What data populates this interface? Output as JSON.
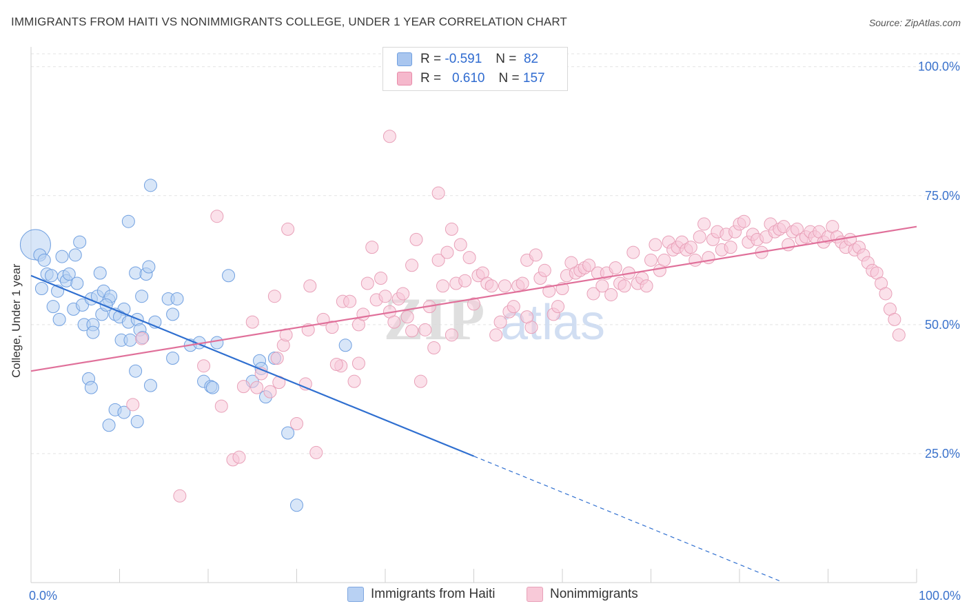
{
  "title": "IMMIGRANTS FROM HAITI VS NONIMMIGRANTS COLLEGE, UNDER 1 YEAR CORRELATION CHART",
  "source": "Source: ZipAtlas.com",
  "watermark": {
    "zip": "ZIP",
    "atlas": "atlas"
  },
  "legend": {
    "r_label": "R =",
    "n_label": "N =",
    "rows": [
      {
        "r": "-0.591",
        "n": "82",
        "color": "#a9c6ef",
        "stroke": "#6f9fe0"
      },
      {
        "r": "0.610",
        "n": "157",
        "color": "#f5b8cc",
        "stroke": "#e88aa8"
      }
    ]
  },
  "bottom_legend": {
    "items": [
      {
        "label": "Immigrants from Haiti",
        "color": "#b8d1f3",
        "stroke": "#7ea6e0"
      },
      {
        "label": "Nonimmigrants",
        "color": "#f8c9d8",
        "stroke": "#e8a0b8"
      }
    ]
  },
  "chart_data": {
    "type": "scatter",
    "title": "IMMIGRANTS FROM HAITI VS NONIMMIGRANTS COLLEGE, UNDER 1 YEAR CORRELATION CHART",
    "xlabel": "",
    "ylabel": "College, Under 1 year",
    "xlim": [
      0,
      100
    ],
    "ylim": [
      0,
      102.5
    ],
    "x_ticks": [
      "0.0%",
      "100.0%"
    ],
    "y_ticks": [
      {
        "v": 25,
        "label": "25.0%"
      },
      {
        "v": 50,
        "label": "50.0%"
      },
      {
        "v": 75,
        "label": "75.0%"
      },
      {
        "v": 100,
        "label": "100.0%"
      }
    ],
    "grid": true,
    "legend_position": "top-center",
    "series": [
      {
        "name": "Immigrants from Haiti",
        "fill": "#b8d1f3",
        "stroke": "#6f9fe0",
        "trend_color": "#2f6fd0",
        "trend": {
          "x0": 0,
          "y0": 59.5,
          "x1": 50,
          "y1": 24.5,
          "dash_to_x": 84.5
        },
        "points": [
          [
            0.5,
            65.5,
            1
          ],
          [
            1,
            63.5,
            0
          ],
          [
            1.5,
            62.5,
            0
          ],
          [
            1.8,
            59.8,
            0
          ],
          [
            2.3,
            59.5,
            0
          ],
          [
            1.2,
            57,
            0
          ],
          [
            3.5,
            63.2,
            0
          ],
          [
            5,
            63.5,
            0
          ],
          [
            5.5,
            66,
            0
          ],
          [
            2.5,
            53.5,
            0
          ],
          [
            3,
            56.5,
            0
          ],
          [
            3.7,
            59.3,
            0
          ],
          [
            4,
            58.5,
            0
          ],
          [
            4.3,
            59.8,
            0
          ],
          [
            3.2,
            51,
            0
          ],
          [
            4.8,
            53,
            0
          ],
          [
            5.2,
            58,
            0
          ],
          [
            6,
            50,
            0
          ],
          [
            7,
            50,
            0
          ],
          [
            5.8,
            53.8,
            0
          ],
          [
            6.8,
            55,
            0
          ],
          [
            7.5,
            55.5,
            0
          ],
          [
            7,
            48.5,
            0
          ],
          [
            8,
            52,
            0
          ],
          [
            8.2,
            56.5,
            0
          ],
          [
            8.8,
            54.8,
            0
          ],
          [
            9,
            55.5,
            0
          ],
          [
            8.5,
            53.8,
            0
          ],
          [
            7.8,
            60,
            0
          ],
          [
            10.5,
            53,
            0
          ],
          [
            9.5,
            52,
            0
          ],
          [
            10,
            51.5,
            0
          ],
          [
            11,
            50.5,
            0
          ],
          [
            10.2,
            47,
            0
          ],
          [
            11.2,
            47,
            0
          ],
          [
            12,
            51,
            0
          ],
          [
            12.3,
            49,
            0
          ],
          [
            12.6,
            47.5,
            0
          ],
          [
            14,
            50.5,
            0
          ],
          [
            15.5,
            55,
            0
          ],
          [
            16,
            52,
            0
          ],
          [
            16.5,
            55,
            0
          ],
          [
            11,
            70,
            0
          ],
          [
            11.8,
            60,
            0
          ],
          [
            13,
            59.8,
            0
          ],
          [
            13.3,
            61.2,
            0
          ],
          [
            12.5,
            55.5,
            0
          ],
          [
            13.5,
            77,
            0
          ],
          [
            6.5,
            39.5,
            0
          ],
          [
            6.8,
            37.8,
            0
          ],
          [
            9.5,
            33.5,
            0
          ],
          [
            8.8,
            30.5,
            0
          ],
          [
            10.5,
            33,
            0
          ],
          [
            11.8,
            41,
            0
          ],
          [
            12,
            31.2,
            0
          ],
          [
            13.5,
            38.2,
            0
          ],
          [
            16,
            43.5,
            0
          ],
          [
            18,
            46,
            0
          ],
          [
            19,
            46.5,
            0
          ],
          [
            19.5,
            39,
            0
          ],
          [
            20.3,
            38,
            0
          ],
          [
            20.5,
            37.8,
            0
          ],
          [
            21,
            46.5,
            0
          ],
          [
            22.3,
            59.5,
            0
          ],
          [
            25,
            39,
            0
          ],
          [
            25.8,
            43,
            0
          ],
          [
            26,
            41.5,
            0
          ],
          [
            26.5,
            36,
            0
          ],
          [
            27.5,
            43.5,
            0
          ],
          [
            29,
            29,
            0
          ],
          [
            35.5,
            46,
            0
          ],
          [
            30,
            15,
            0
          ]
        ]
      },
      {
        "name": "Nonimmigrants",
        "fill": "#f8c9d8",
        "stroke": "#e8a0b8",
        "trend_color": "#e0709a",
        "trend": {
          "x0": 0,
          "y0": 41,
          "x1": 100,
          "y1": 69
        },
        "points": [
          [
            12.5,
            47.3,
            0
          ],
          [
            11.5,
            34.5,
            0
          ],
          [
            16.8,
            16.8,
            0
          ],
          [
            19.5,
            42,
            0
          ],
          [
            21,
            71,
            0
          ],
          [
            21.5,
            34.2,
            0
          ],
          [
            22.8,
            23.8,
            0
          ],
          [
            23.5,
            24.3,
            0
          ],
          [
            24,
            38,
            0
          ],
          [
            25,
            50.5,
            0
          ],
          [
            25.5,
            37.8,
            0
          ],
          [
            26,
            40.5,
            0
          ],
          [
            27,
            37,
            0
          ],
          [
            27.5,
            55.5,
            0
          ],
          [
            27.8,
            43.5,
            0
          ],
          [
            28,
            38.8,
            0
          ],
          [
            28.5,
            46,
            0
          ],
          [
            28.8,
            48,
            0
          ],
          [
            30,
            30.8,
            0
          ],
          [
            31,
            38.5,
            0
          ],
          [
            31.5,
            57.5,
            0
          ],
          [
            32.2,
            25.2,
            0
          ],
          [
            33,
            51,
            0
          ],
          [
            34,
            49.5,
            0
          ],
          [
            35,
            42,
            0
          ],
          [
            35.2,
            54.5,
            0
          ],
          [
            36,
            54.5,
            0
          ],
          [
            36.5,
            39,
            0
          ],
          [
            37,
            50,
            0
          ],
          [
            37.5,
            52,
            0
          ],
          [
            38,
            58,
            0
          ],
          [
            38.5,
            65,
            0
          ],
          [
            39,
            54.8,
            0
          ],
          [
            39.5,
            59,
            0
          ],
          [
            40,
            55.5,
            0
          ],
          [
            40.5,
            52.5,
            0
          ],
          [
            41,
            50.5,
            0
          ],
          [
            41.5,
            55,
            0
          ],
          [
            42,
            56,
            0
          ],
          [
            42.5,
            51.5,
            0
          ],
          [
            43,
            61.5,
            0
          ],
          [
            43.5,
            66.5,
            0
          ],
          [
            44,
            39,
            0
          ],
          [
            44.5,
            49,
            0
          ],
          [
            45,
            53.5,
            0
          ],
          [
            45.5,
            45.5,
            0
          ],
          [
            46,
            62.5,
            0
          ],
          [
            46.5,
            57.5,
            0
          ],
          [
            47,
            64,
            0
          ],
          [
            47.5,
            68.5,
            0
          ],
          [
            48,
            58,
            0
          ],
          [
            48.5,
            65.5,
            0
          ],
          [
            49,
            58.5,
            0
          ],
          [
            49.5,
            63,
            0
          ],
          [
            50,
            54,
            0
          ],
          [
            50.5,
            59.5,
            0
          ],
          [
            51,
            60,
            0
          ],
          [
            51.5,
            58,
            0
          ],
          [
            52,
            57.5,
            0
          ],
          [
            52.5,
            48,
            0
          ],
          [
            53,
            50.5,
            0
          ],
          [
            53.5,
            57.5,
            0
          ],
          [
            54,
            52.5,
            0
          ],
          [
            54.5,
            53.5,
            0
          ],
          [
            55,
            57.5,
            0
          ],
          [
            55.5,
            58,
            0
          ],
          [
            56,
            62.5,
            0
          ],
          [
            56.5,
            49.5,
            0
          ],
          [
            57,
            63.5,
            0
          ],
          [
            57.5,
            59,
            0
          ],
          [
            58,
            60.5,
            0
          ],
          [
            58.5,
            56.5,
            0
          ],
          [
            59,
            52,
            0
          ],
          [
            59.5,
            53.5,
            0
          ],
          [
            60,
            57,
            0
          ],
          [
            60.5,
            59.5,
            0
          ],
          [
            61,
            62,
            0
          ],
          [
            61.5,
            60,
            0
          ],
          [
            62,
            60.5,
            0
          ],
          [
            62.5,
            61,
            0
          ],
          [
            63,
            61.5,
            0
          ],
          [
            63.5,
            56,
            0
          ],
          [
            64,
            60,
            0
          ],
          [
            64.5,
            57.5,
            0
          ],
          [
            65,
            60,
            0
          ],
          [
            65.5,
            55.8,
            0
          ],
          [
            66,
            61,
            0
          ],
          [
            66.5,
            58,
            0
          ],
          [
            67,
            57.5,
            0
          ],
          [
            67.5,
            60,
            0
          ],
          [
            68,
            64,
            0
          ],
          [
            68.5,
            58,
            0
          ],
          [
            69,
            59,
            0
          ],
          [
            69.5,
            57.5,
            0
          ],
          [
            70,
            62.5,
            0
          ],
          [
            70.5,
            65.5,
            0
          ],
          [
            71,
            60.5,
            0
          ],
          [
            71.5,
            62.5,
            0
          ],
          [
            72,
            66,
            0
          ],
          [
            72.5,
            64.5,
            0
          ],
          [
            73,
            65,
            0
          ],
          [
            73.5,
            66,
            0
          ],
          [
            74,
            64.5,
            0
          ],
          [
            74.5,
            65,
            0
          ],
          [
            75,
            62.5,
            0
          ],
          [
            75.5,
            67,
            0
          ],
          [
            76,
            69.5,
            0
          ],
          [
            76.5,
            63,
            0
          ],
          [
            77,
            66.5,
            0
          ],
          [
            77.5,
            68,
            0
          ],
          [
            78,
            64.5,
            0
          ],
          [
            78.5,
            67.5,
            0
          ],
          [
            79,
            65,
            0
          ],
          [
            79.5,
            68,
            0
          ],
          [
            80,
            69.5,
            0
          ],
          [
            80.5,
            70,
            0
          ],
          [
            81,
            66,
            0
          ],
          [
            81.5,
            67.5,
            0
          ],
          [
            82,
            66.5,
            0
          ],
          [
            82.5,
            64,
            0
          ],
          [
            83,
            67,
            0
          ],
          [
            83.5,
            69.5,
            0
          ],
          [
            84,
            68,
            0
          ],
          [
            84.5,
            68.5,
            0
          ],
          [
            85,
            69,
            0
          ],
          [
            85.5,
            65.5,
            0
          ],
          [
            86,
            68,
            0
          ],
          [
            86.5,
            68.5,
            0
          ],
          [
            87,
            66.5,
            0
          ],
          [
            87.5,
            67,
            0
          ],
          [
            88,
            68,
            0
          ],
          [
            88.5,
            67,
            0
          ],
          [
            89,
            68,
            0
          ],
          [
            89.5,
            66,
            0
          ],
          [
            90,
            67,
            0
          ],
          [
            90.5,
            69,
            0
          ],
          [
            91,
            67,
            0
          ],
          [
            91.5,
            66,
            0
          ],
          [
            92,
            65,
            0
          ],
          [
            92.5,
            66.5,
            0
          ],
          [
            93,
            64.5,
            0
          ],
          [
            93.5,
            65,
            0
          ],
          [
            94,
            63.5,
            0
          ],
          [
            94.5,
            62,
            0
          ],
          [
            95,
            60.5,
            0
          ],
          [
            95.5,
            60,
            0
          ],
          [
            96,
            58,
            0
          ],
          [
            96.5,
            56,
            0
          ],
          [
            97,
            53,
            0
          ],
          [
            97.5,
            51,
            0
          ],
          [
            98,
            48,
            0
          ],
          [
            40.5,
            86.5,
            0
          ],
          [
            46,
            75.5,
            0
          ],
          [
            29,
            68.5,
            0
          ],
          [
            31.3,
            49,
            0
          ],
          [
            34.5,
            42.3,
            0
          ],
          [
            37,
            42.5,
            0
          ],
          [
            43,
            48.8,
            0
          ],
          [
            47.5,
            48,
            0
          ],
          [
            56,
            51.5,
            0
          ]
        ]
      }
    ]
  }
}
